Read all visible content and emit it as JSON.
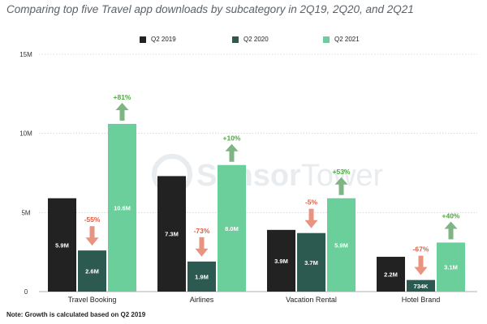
{
  "title": "Comparing top five Travel app downloads by subcategory in 2Q19, 2Q20, and 2Q21",
  "note": "Note: Growth is calculated based on Q2 2019",
  "watermark": {
    "part1": "Sensor",
    "part2": "Tower"
  },
  "colors": {
    "q2_2019": "#222222",
    "q2_2020": "#2c5a51",
    "q2_2021": "#6bcf9c",
    "up_arrow": "#7fb584",
    "down_arrow": "#e89480",
    "pos_text": "#4caa3b",
    "neg_text": "#e45b3f",
    "grid": "#cfd3d6",
    "axis_text": "#333333"
  },
  "chart_data": {
    "type": "bar",
    "categories": [
      "Travel Booking",
      "Airlines",
      "Vacation Rental",
      "Hotel Brand"
    ],
    "series": [
      {
        "name": "Q2 2019",
        "values": [
          5.9,
          7.3,
          3.9,
          2.2
        ],
        "labels": [
          "5.9M",
          "7.3M",
          "3.9M",
          "2.2M"
        ]
      },
      {
        "name": "Q2 2020",
        "values": [
          2.6,
          1.9,
          3.7,
          0.734
        ],
        "labels": [
          "2.6M",
          "1.9M",
          "3.7M",
          "734K"
        ]
      },
      {
        "name": "Q2 2021",
        "values": [
          10.6,
          8.0,
          5.9,
          3.1
        ],
        "labels": [
          "10.6M",
          "8.0M",
          "5.9M",
          "3.1M"
        ]
      }
    ],
    "growth_annotations": [
      {
        "category": "Travel Booking",
        "series": "Q2 2020",
        "label": "-55%",
        "direction": "down"
      },
      {
        "category": "Travel Booking",
        "series": "Q2 2021",
        "label": "+81%",
        "direction": "up"
      },
      {
        "category": "Airlines",
        "series": "Q2 2020",
        "label": "-73%",
        "direction": "down"
      },
      {
        "category": "Airlines",
        "series": "Q2 2021",
        "label": "+10%",
        "direction": "up"
      },
      {
        "category": "Vacation Rental",
        "series": "Q2 2020",
        "label": "-5%",
        "direction": "down"
      },
      {
        "category": "Vacation Rental",
        "series": "Q2 2021",
        "label": "+53%",
        "direction": "up"
      },
      {
        "category": "Hotel Brand",
        "series": "Q2 2020",
        "label": "-67%",
        "direction": "down"
      },
      {
        "category": "Hotel Brand",
        "series": "Q2 2021",
        "label": "+40%",
        "direction": "up"
      }
    ],
    "y_ticks": [
      0,
      5,
      10,
      15
    ],
    "y_tick_labels": [
      "0",
      "5M",
      "10M",
      "15M"
    ],
    "ylim": [
      0,
      15
    ],
    "grid": true,
    "legend_position": "top"
  }
}
